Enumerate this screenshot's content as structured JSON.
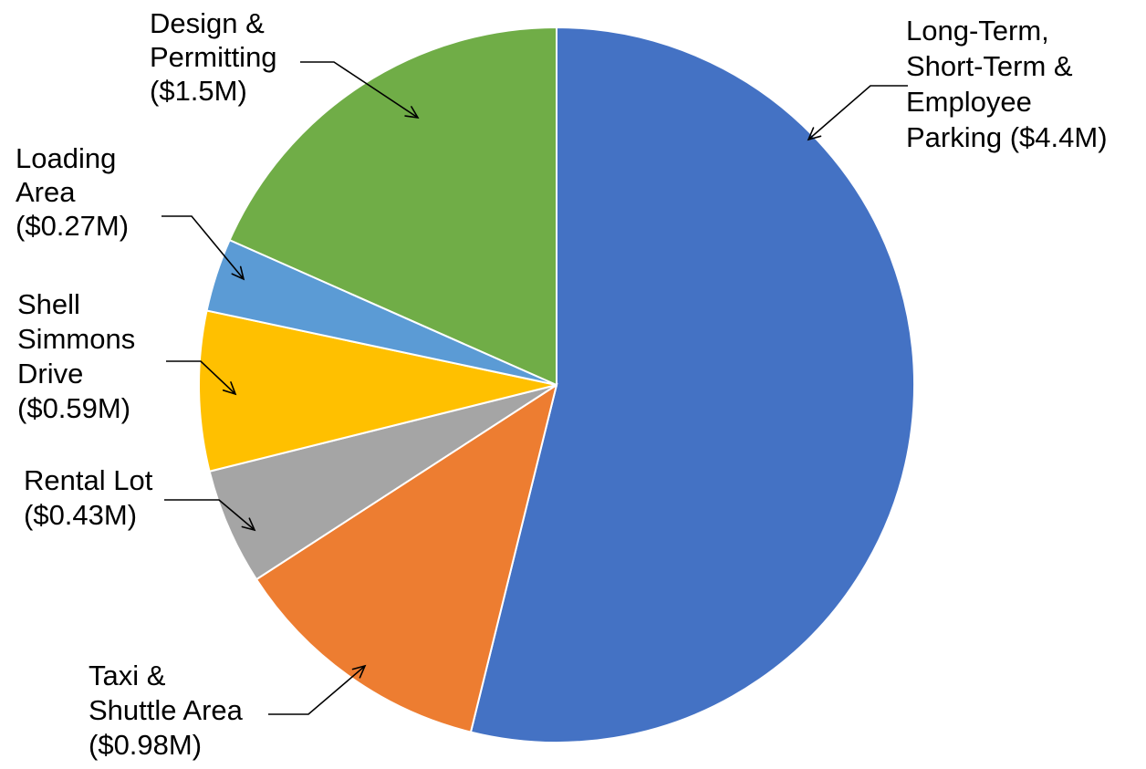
{
  "chart_data": {
    "type": "pie",
    "title": "",
    "start_angle_deg": 90,
    "direction": "clockwise",
    "legend": "none",
    "categories": [
      "Long-Term, Short-Term & Employee Parking",
      "Taxi & Shuttle Area",
      "Rental Lot",
      "Shell Simmons Drive",
      "Loading Area",
      "Design & Permitting"
    ],
    "values": [
      4.4,
      0.98,
      0.43,
      0.59,
      0.27,
      1.5
    ],
    "unit": "$M",
    "colors": [
      "#4472C4",
      "#ED7D31",
      "#A5A5A5",
      "#FFC000",
      "#5B9BD5",
      "#70AD47"
    ],
    "labels": [
      [
        "Long-Term,",
        "Short-Term &",
        "Employee",
        "Parking ($4.4M)"
      ],
      [
        "Taxi &",
        "Shuttle Area",
        "($0.98M)"
      ],
      [
        "Rental Lot",
        "($0.43M)"
      ],
      [
        "Shell",
        "Simmons",
        "Drive",
        "($0.59M)"
      ],
      [
        "Loading",
        "Area",
        "($0.27M)"
      ],
      [
        "Design &",
        "Permitting",
        "($1.5M)"
      ]
    ]
  }
}
